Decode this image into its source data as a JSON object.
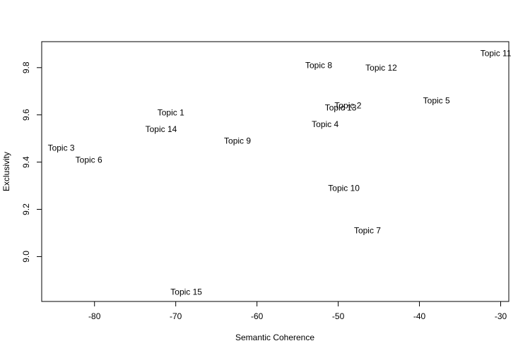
{
  "chart_data": {
    "type": "scatter",
    "xlabel": "Semantic Coherence",
    "ylabel": "Exclusivity",
    "xlim": [
      -86.5,
      -29.0
    ],
    "ylim": [
      8.81,
      9.91
    ],
    "xticks": [
      -80,
      -70,
      -60,
      -50,
      -40,
      -30
    ],
    "yticks": [
      9.0,
      9.2,
      9.4,
      9.6,
      9.8
    ],
    "xtick_labels": [
      "-80",
      "-70",
      "-60",
      "-50",
      "-40",
      "-30"
    ],
    "ytick_labels": [
      "9.0",
      "9.2",
      "9.4",
      "9.6",
      "9.8"
    ],
    "grid": false,
    "points": [
      {
        "label": "Topic 1",
        "x": -70.6,
        "y": 9.61
      },
      {
        "label": "Topic 2",
        "x": -48.8,
        "y": 9.64
      },
      {
        "label": "Topic 3",
        "x": -84.1,
        "y": 9.46
      },
      {
        "label": "Topic 4",
        "x": -51.6,
        "y": 9.56
      },
      {
        "label": "Topic 5",
        "x": -37.9,
        "y": 9.66
      },
      {
        "label": "Topic 6",
        "x": -80.7,
        "y": 9.41
      },
      {
        "label": "Topic 7",
        "x": -46.4,
        "y": 9.11
      },
      {
        "label": "Topic 8",
        "x": -52.4,
        "y": 9.81
      },
      {
        "label": "Topic 9",
        "x": -62.4,
        "y": 9.49
      },
      {
        "label": "Topic 10",
        "x": -49.3,
        "y": 9.29
      },
      {
        "label": "Topic 11",
        "x": -30.6,
        "y": 9.86
      },
      {
        "label": "Topic 12",
        "x": -44.7,
        "y": 9.8
      },
      {
        "label": "Topic 13",
        "x": -49.7,
        "y": 9.63
      },
      {
        "label": "Topic 14",
        "x": -71.8,
        "y": 9.54
      },
      {
        "label": "Topic 15",
        "x": -68.7,
        "y": 8.85
      }
    ]
  }
}
